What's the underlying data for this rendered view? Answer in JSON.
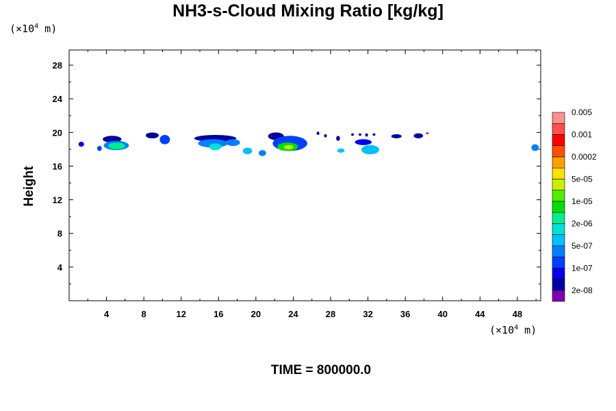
{
  "title": "NH3-s-Cloud Mixing Ratio [kg/kg]",
  "y_unit": {
    "prefix": "(×10",
    "exp": "4",
    "suffix": " m)"
  },
  "x_unit": {
    "prefix": "(×10",
    "exp": "4",
    "suffix": " m)"
  },
  "y_label": "Height",
  "time_label": "TIME = 800000.0",
  "chart_data": {
    "type": "heatmap",
    "title": "NH3-s-Cloud Mixing Ratio [kg/kg]",
    "xlabel": "",
    "ylabel": "Height",
    "x_unit": "×10^4 m",
    "y_unit": "×10^4 m",
    "xlim": [
      0,
      50.5
    ],
    "ylim": [
      0,
      29.8
    ],
    "x_ticks": [
      4,
      8,
      12,
      16,
      20,
      24,
      28,
      32,
      36,
      40,
      44,
      48
    ],
    "y_ticks": [
      4,
      8,
      12,
      16,
      20,
      24,
      28
    ],
    "x_minor_step": 2,
    "y_minor_step": 2,
    "colorbar": {
      "colors": [
        "#7f00b2",
        "#0000a0",
        "#0000ee",
        "#0040ff",
        "#0080ff",
        "#00c0ff",
        "#00e0d8",
        "#00ee90",
        "#00e000",
        "#50ee00",
        "#c8f000",
        "#ffe000",
        "#ffa000",
        "#ff5000",
        "#ff0000",
        "#ff5050",
        "#ff9090"
      ],
      "labels": [
        "2e-08",
        "1e-07",
        "5e-07",
        "2e-06",
        "1e-05",
        "5e-05",
        "0.0002",
        "0.001",
        "0.005"
      ]
    },
    "cloud_blobs": [
      {
        "x": [
          1.0,
          1.6
        ],
        "y": [
          18.3,
          18.9
        ],
        "level": 2
      },
      {
        "x": [
          3.0,
          3.5
        ],
        "y": [
          17.8,
          18.4
        ],
        "level": 3
      },
      {
        "x": [
          3.6,
          5.6
        ],
        "y": [
          18.8,
          19.6
        ],
        "level": 1
      },
      {
        "x": [
          3.7,
          6.4
        ],
        "y": [
          17.9,
          19.0
        ],
        "level": 4
      },
      {
        "x": [
          4.2,
          6.0
        ],
        "y": [
          18.0,
          18.8
        ],
        "level": 7
      },
      {
        "x": [
          8.2,
          9.6
        ],
        "y": [
          19.3,
          20.0
        ],
        "level": 1
      },
      {
        "x": [
          9.7,
          10.8
        ],
        "y": [
          18.6,
          19.7
        ],
        "level": 3
      },
      {
        "x": [
          13.4,
          17.9
        ],
        "y": [
          18.9,
          19.7
        ],
        "level": 1
      },
      {
        "x": [
          13.8,
          17.0
        ],
        "y": [
          18.2,
          19.2
        ],
        "level": 4
      },
      {
        "x": [
          15.0,
          16.3
        ],
        "y": [
          17.9,
          18.7
        ],
        "level": 6
      },
      {
        "x": [
          16.8,
          18.3
        ],
        "y": [
          18.4,
          19.2
        ],
        "level": 4
      },
      {
        "x": [
          18.6,
          19.6
        ],
        "y": [
          17.4,
          18.2
        ],
        "level": 5
      },
      {
        "x": [
          20.3,
          21.1
        ],
        "y": [
          17.2,
          17.9
        ],
        "level": 4
      },
      {
        "x": [
          21.3,
          23.0
        ],
        "y": [
          19.1,
          20.0
        ],
        "level": 1
      },
      {
        "x": [
          21.8,
          25.5
        ],
        "y": [
          17.8,
          19.6
        ],
        "level": 3
      },
      {
        "x": [
          22.3,
          24.5
        ],
        "y": [
          17.8,
          18.8
        ],
        "level": 8
      },
      {
        "x": [
          23.0,
          24.0
        ],
        "y": [
          18.0,
          18.5
        ],
        "level": 10
      },
      {
        "x": [
          28.7,
          29.5
        ],
        "y": [
          17.6,
          18.1
        ],
        "level": 5
      },
      {
        "x": [
          30.6,
          32.4
        ],
        "y": [
          18.5,
          19.2
        ],
        "level": 2
      },
      {
        "x": [
          31.3,
          33.2
        ],
        "y": [
          17.4,
          18.5
        ],
        "level": 5
      },
      {
        "x": [
          34.5,
          35.6
        ],
        "y": [
          19.3,
          19.8
        ],
        "level": 1
      },
      {
        "x": [
          36.9,
          37.9
        ],
        "y": [
          19.3,
          19.9
        ],
        "level": 1
      },
      {
        "x": [
          49.5,
          50.3
        ],
        "y": [
          17.8,
          18.6
        ],
        "level": 4
      },
      {
        "x": [
          26.5,
          26.8
        ],
        "y": [
          19.7,
          20.1
        ],
        "level": 1
      },
      {
        "x": [
          27.3,
          27.6
        ],
        "y": [
          19.4,
          19.8
        ],
        "level": 1
      },
      {
        "x": [
          28.6,
          29.0
        ],
        "y": [
          19.0,
          19.6
        ],
        "level": 1
      },
      {
        "x": [
          30.2,
          30.5
        ],
        "y": [
          19.6,
          19.9
        ],
        "level": 1
      },
      {
        "x": [
          31.0,
          31.3
        ],
        "y": [
          19.6,
          19.9
        ],
        "level": 1
      },
      {
        "x": [
          31.7,
          32.0
        ],
        "y": [
          19.5,
          19.9
        ],
        "level": 1
      },
      {
        "x": [
          32.5,
          32.8
        ],
        "y": [
          19.6,
          19.9
        ],
        "level": 1
      },
      {
        "x": [
          38.2,
          38.5
        ],
        "y": [
          19.8,
          20.0
        ],
        "level": 0
      }
    ]
  }
}
